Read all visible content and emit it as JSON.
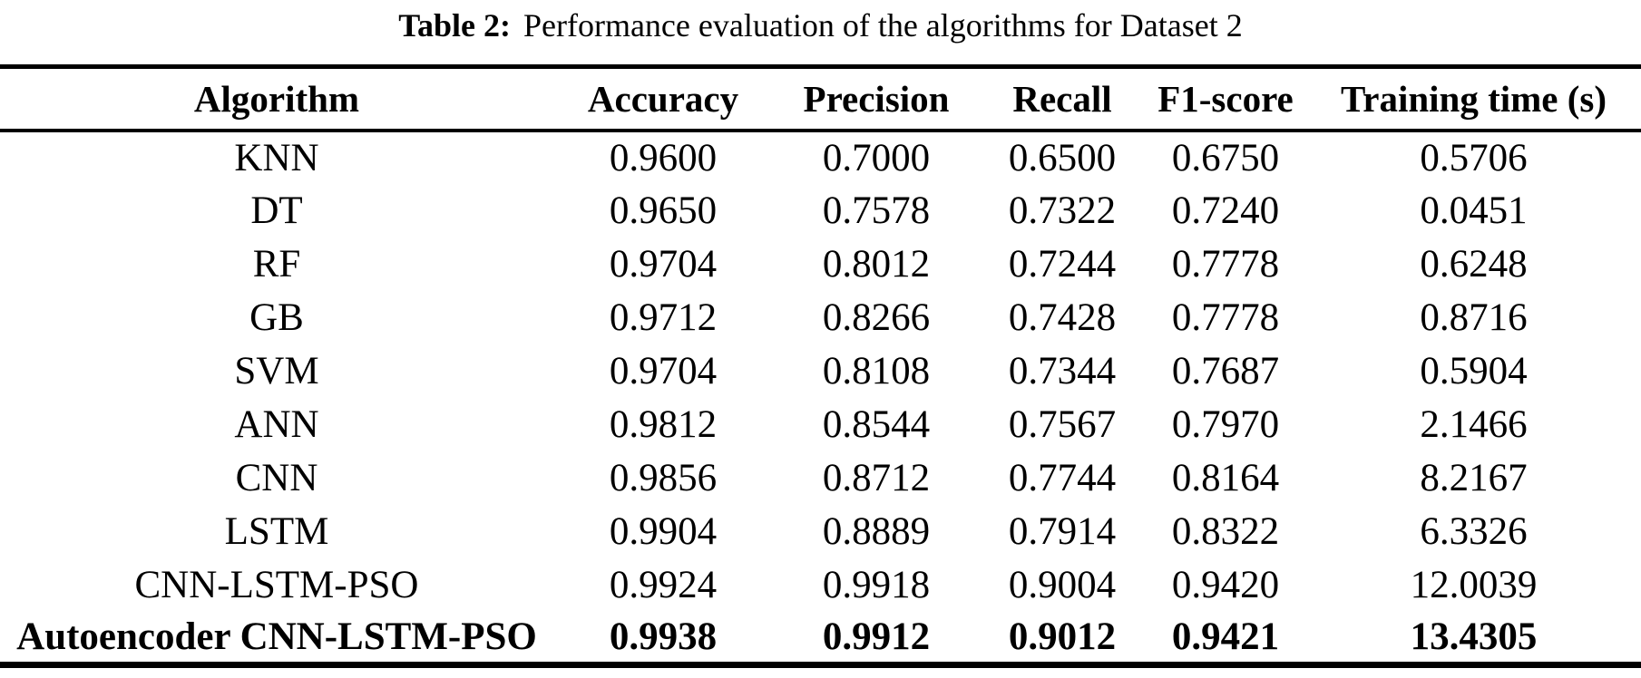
{
  "caption": {
    "label": "Table 2:",
    "text": "Performance evaluation of the algorithms for Dataset 2"
  },
  "table": {
    "columns": [
      "Algorithm",
      "Accuracy",
      "Precision",
      "Recall",
      "F1-score",
      "Training time (s)"
    ],
    "rows": [
      {
        "algorithm": "KNN",
        "values": [
          "0.9600",
          "0.7000",
          "0.6500",
          "0.6750",
          "0.5706"
        ],
        "bold": false
      },
      {
        "algorithm": "DT",
        "values": [
          "0.9650",
          "0.7578",
          "0.7322",
          "0.7240",
          "0.0451"
        ],
        "bold": false
      },
      {
        "algorithm": "RF",
        "values": [
          "0.9704",
          "0.8012",
          "0.7244",
          "0.7778",
          "0.6248"
        ],
        "bold": false
      },
      {
        "algorithm": "GB",
        "values": [
          "0.9712",
          "0.8266",
          "0.7428",
          "0.7778",
          "0.8716"
        ],
        "bold": false
      },
      {
        "algorithm": "SVM",
        "values": [
          "0.9704",
          "0.8108",
          "0.7344",
          "0.7687",
          "0.5904"
        ],
        "bold": false
      },
      {
        "algorithm": "ANN",
        "values": [
          "0.9812",
          "0.8544",
          "0.7567",
          "0.7970",
          "2.1466"
        ],
        "bold": false
      },
      {
        "algorithm": "CNN",
        "values": [
          "0.9856",
          "0.8712",
          "0.7744",
          "0.8164",
          "8.2167"
        ],
        "bold": false
      },
      {
        "algorithm": "LSTM",
        "values": [
          "0.9904",
          "0.8889",
          "0.7914",
          "0.8322",
          "6.3326"
        ],
        "bold": false
      },
      {
        "algorithm": "CNN-LSTM-PSO",
        "values": [
          "0.9924",
          "0.9918",
          "0.9004",
          "0.9420",
          "12.0039"
        ],
        "bold": false
      },
      {
        "algorithm": "Autoencoder CNN-LSTM-PSO",
        "values": [
          "0.9938",
          "0.9912",
          "0.9012",
          "0.9421",
          "13.4305"
        ],
        "bold": true
      }
    ]
  },
  "colors": {
    "text": "#000000",
    "background": "#ffffff",
    "rule": "#000000"
  }
}
